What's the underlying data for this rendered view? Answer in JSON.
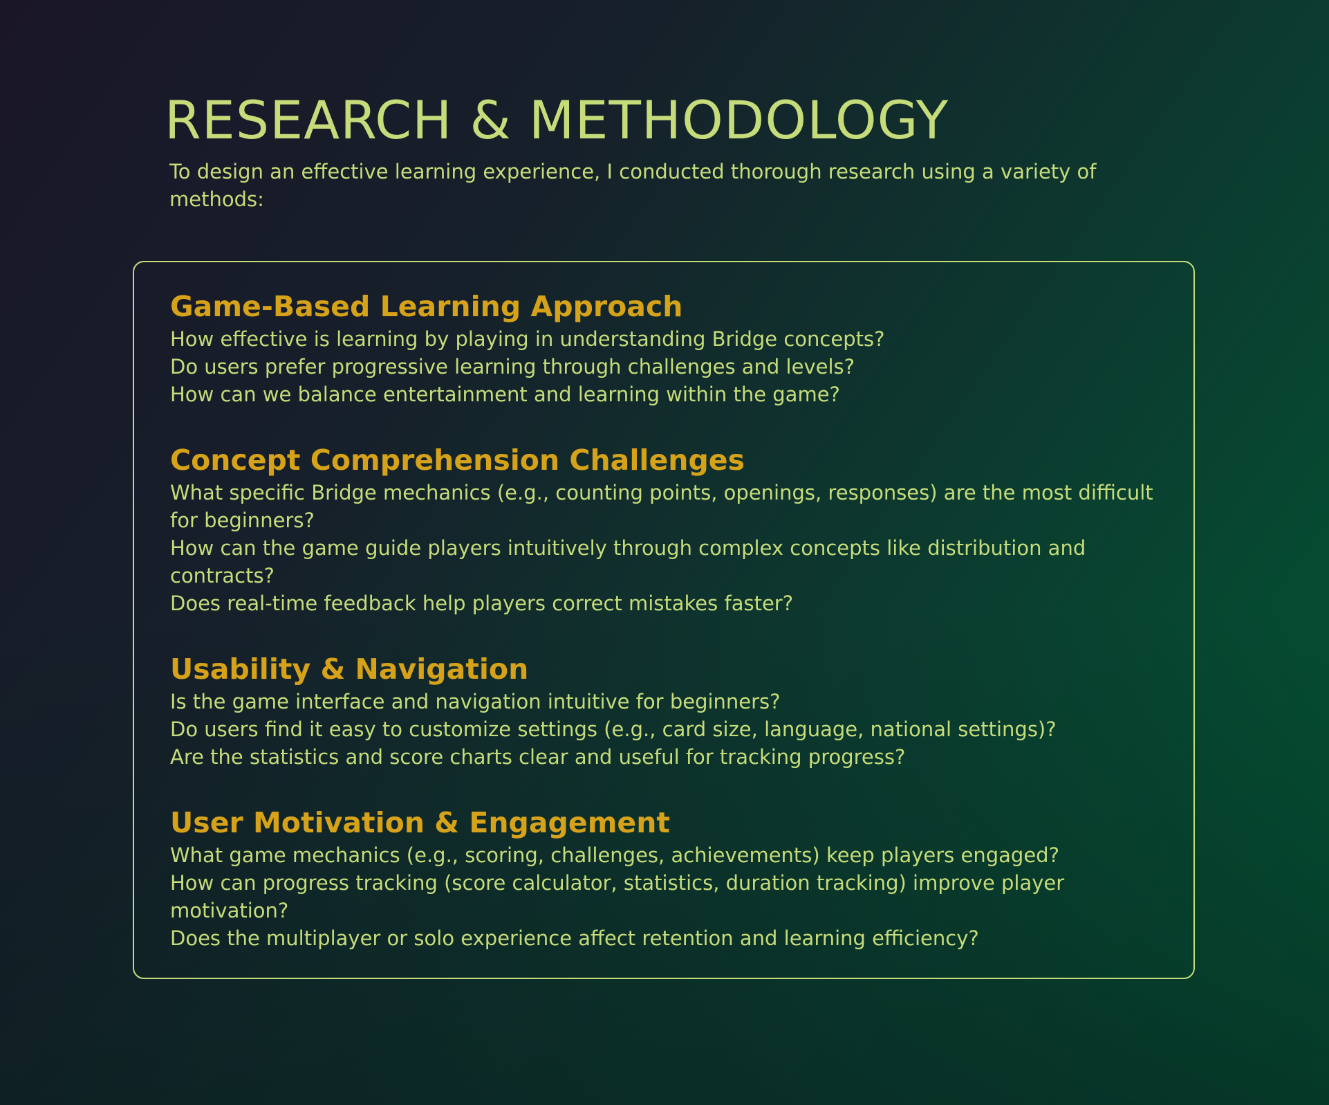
{
  "header": {
    "title": "RESEARCH & METHODOLOGY",
    "intro": "To design an effective learning experience, I conducted thorough research using a variety of methods:"
  },
  "sections": [
    {
      "heading": "Game-Based Learning Approach",
      "questions": [
        "How effective is learning by playing in understanding Bridge concepts?",
        "Do users prefer progressive learning through challenges and levels?",
        "How can we balance entertainment and learning within the game?"
      ]
    },
    {
      "heading": "Concept Comprehension Challenges",
      "questions": [
        "What specific Bridge mechanics (e.g., counting points, openings, responses) are the most difficult for beginners?",
        "How can the game guide players intuitively through complex concepts like distribution and contracts?",
        "Does real-time feedback help players correct mistakes faster?"
      ]
    },
    {
      "heading": "Usability & Navigation",
      "questions": [
        "Is the game interface and navigation intuitive for beginners?",
        "Do users find it easy to customize settings (e.g., card size, language, national settings)?",
        "Are the statistics and score charts clear and useful for tracking progress?"
      ]
    },
    {
      "heading": "User Motivation & Engagement",
      "questions": [
        "What game mechanics (e.g., scoring, challenges, achievements) keep players engaged?",
        "How can progress tracking (score calculator, statistics, duration tracking) improve player motivation?",
        "Does the multiplayer or solo experience affect retention and learning efficiency?"
      ]
    }
  ]
}
